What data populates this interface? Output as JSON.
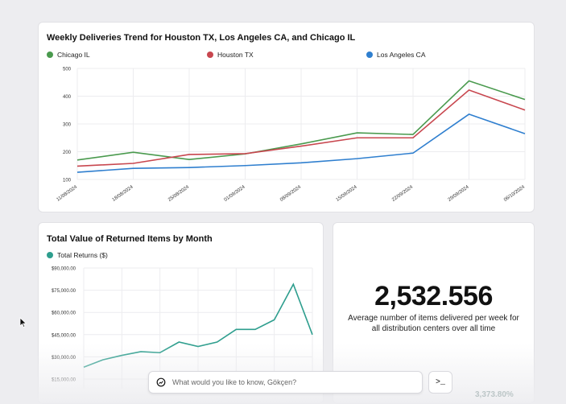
{
  "top_chart": {
    "title": "Weekly Deliveries Trend for Houston TX, Los Angeles CA, and Chicago IL",
    "legend": [
      {
        "name": "Chicago IL",
        "color": "#4a9a4e"
      },
      {
        "name": "Houston TX",
        "color": "#c8474f"
      },
      {
        "name": "Los Angeles CA",
        "color": "#2f7fcf"
      }
    ]
  },
  "bottom_left_chart": {
    "title": "Total Value of Returned Items by Month",
    "legend": [
      {
        "name": "Total Returns ($)",
        "color": "#2e9e8e"
      }
    ]
  },
  "kpi": {
    "value": "2,532.556",
    "caption": "Average number of items delivered per week for all distribution centers over all time"
  },
  "ask_bar": {
    "placeholder": "What would you like to know, Gökçen?",
    "terminal_label": ">_"
  },
  "faded_value": "3,373.80%",
  "chart_data": [
    {
      "type": "line",
      "title": "Weekly Deliveries Trend for Houston TX, Los Angeles CA, and Chicago IL",
      "x": [
        "11/08/2024",
        "18/08/2024",
        "25/08/2024",
        "01/09/2024",
        "08/09/2024",
        "15/09/2024",
        "22/09/2024",
        "29/09/2024",
        "06/10/2024"
      ],
      "x_tick_labels": [
        "11/08/2024",
        "18/08/2024",
        "25/08/2024",
        "01/09/2024",
        "08/09/2024",
        "15/09/2024",
        "22/09/2024",
        "29/09/2024",
        "06/10/2024"
      ],
      "ylim": [
        100,
        500
      ],
      "y_ticks": [
        100,
        200,
        300,
        400,
        500
      ],
      "grid": true,
      "legend_position": "top",
      "series": [
        {
          "name": "Chicago IL",
          "color": "#4a9a4e",
          "values": [
            170,
            198,
            172,
            192,
            228,
            268,
            262,
            455,
            388
          ]
        },
        {
          "name": "Houston TX",
          "color": "#c8474f",
          "values": [
            148,
            158,
            190,
            193,
            220,
            250,
            250,
            422,
            350
          ]
        },
        {
          "name": "Los Angeles CA",
          "color": "#2f7fcf",
          "values": [
            126,
            140,
            143,
            150,
            160,
            175,
            195,
            335,
            265
          ]
        }
      ]
    },
    {
      "type": "line",
      "title": "Total Value of Returned Items by Month",
      "y_tick_labels": [
        "$15,000.00",
        "$30,000.00",
        "$45,000.00",
        "$60,000.00",
        "$75,000.00",
        "$90,000.00"
      ],
      "ylim": [
        15000,
        90000
      ],
      "grid": true,
      "legend_position": "top-left",
      "series": [
        {
          "name": "Total Returns ($)",
          "color": "#2e9e8e",
          "values": [
            23000,
            28000,
            31000,
            33500,
            32800,
            40000,
            37000,
            40000,
            48500,
            48500,
            55000,
            79000,
            45000
          ]
        }
      ]
    }
  ]
}
